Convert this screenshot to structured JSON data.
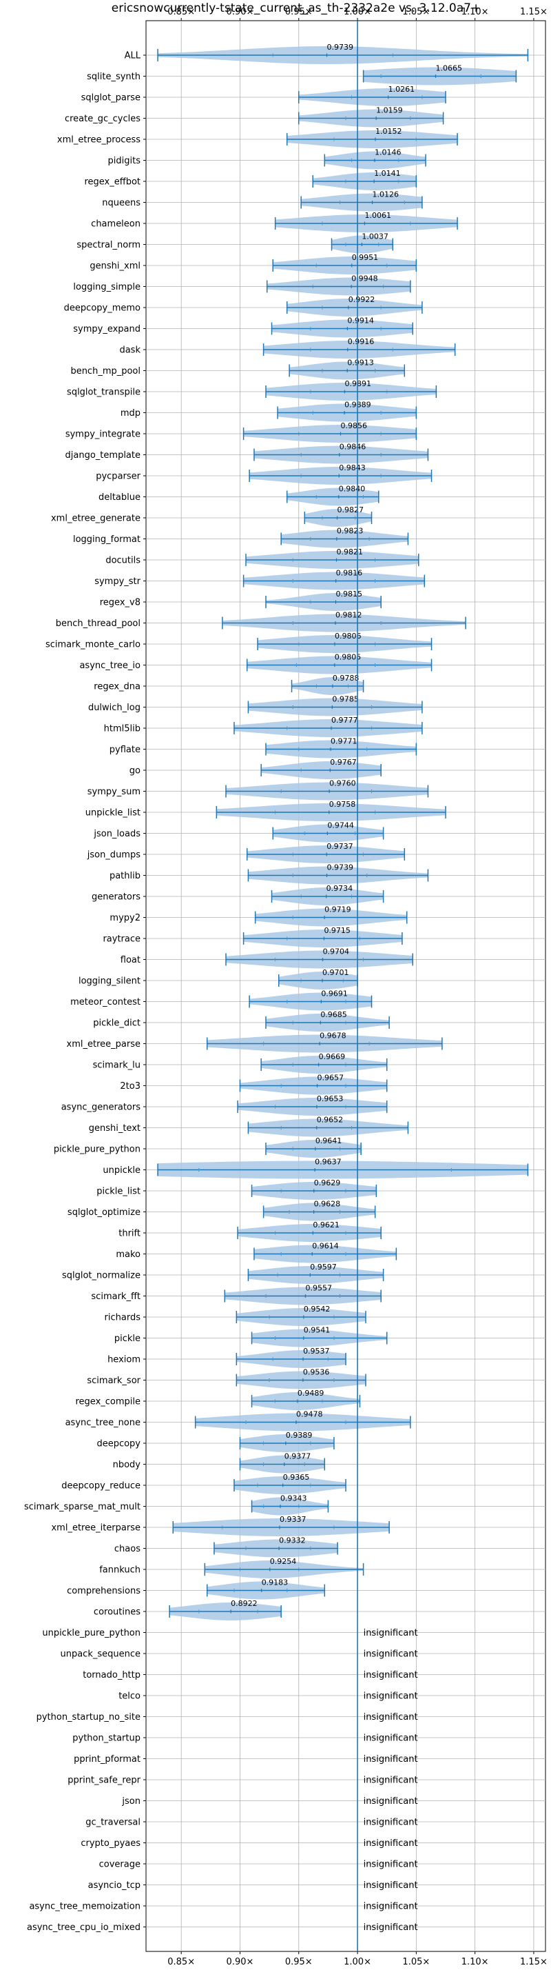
{
  "chart_data": {
    "type": "violin",
    "title": "ericsnowcurrently-tstate_current_as_th-2332a2e vs. 3.12.0a7+",
    "xlabel": "",
    "ylabel": "",
    "xlim": [
      0.82,
      1.16
    ],
    "x_ticks": [
      0.85,
      0.9,
      0.95,
      1.0,
      1.05,
      1.1,
      1.15
    ],
    "x_tick_labels": [
      "0.85×",
      "0.90×",
      "0.95×",
      "1.00×",
      "1.05×",
      "1.10×",
      "1.15×"
    ],
    "reference_line": 1.0,
    "grid": true,
    "colors": {
      "violin": "#a9c8e6",
      "line": "#1f77b4",
      "grid": "#b0b0b0",
      "reference": "#1f77b4"
    },
    "insignificant_label": "insignificant",
    "benchmarks": [
      {
        "name": "ALL",
        "median": 0.9739,
        "min": 0.83,
        "max": 1.145,
        "q1": 0.928,
        "q3": 1.03
      },
      {
        "name": "sqlite_synth",
        "median": 1.0665,
        "min": 1.005,
        "max": 1.135,
        "q1": 1.02,
        "q3": 1.105
      },
      {
        "name": "sqlglot_parse",
        "median": 1.0261,
        "min": 0.95,
        "max": 1.075,
        "q1": 0.995,
        "q3": 1.055
      },
      {
        "name": "create_gc_cycles",
        "median": 1.0159,
        "min": 0.95,
        "max": 1.073,
        "q1": 0.99,
        "q3": 1.045
      },
      {
        "name": "xml_etree_process",
        "median": 1.0152,
        "min": 0.94,
        "max": 1.085,
        "q1": 0.98,
        "q3": 1.05
      },
      {
        "name": "pidigits",
        "median": 1.0146,
        "min": 0.972,
        "max": 1.058,
        "q1": 0.995,
        "q3": 1.035
      },
      {
        "name": "regex_effbot",
        "median": 1.0141,
        "min": 0.962,
        "max": 1.05,
        "q1": 0.99,
        "q3": 1.035
      },
      {
        "name": "nqueens",
        "median": 1.0126,
        "min": 0.952,
        "max": 1.055,
        "q1": 0.985,
        "q3": 1.04
      },
      {
        "name": "chameleon",
        "median": 1.0061,
        "min": 0.93,
        "max": 1.085,
        "q1": 0.97,
        "q3": 1.045
      },
      {
        "name": "spectral_norm",
        "median": 1.0037,
        "min": 0.978,
        "max": 1.03,
        "q1": 0.99,
        "q3": 1.018
      },
      {
        "name": "genshi_xml",
        "median": 0.9951,
        "min": 0.928,
        "max": 1.05,
        "q1": 0.965,
        "q3": 1.025
      },
      {
        "name": "logging_simple",
        "median": 0.9948,
        "min": 0.923,
        "max": 1.045,
        "q1": 0.962,
        "q3": 1.022
      },
      {
        "name": "deepcopy_memo",
        "median": 0.9922,
        "min": 0.94,
        "max": 1.055,
        "q1": 0.97,
        "q3": 1.02
      },
      {
        "name": "sympy_expand",
        "median": 0.9914,
        "min": 0.927,
        "max": 1.047,
        "q1": 0.96,
        "q3": 1.02
      },
      {
        "name": "dask",
        "median": 0.9916,
        "min": 0.92,
        "max": 1.083,
        "q1": 0.96,
        "q3": 1.03
      },
      {
        "name": "bench_mp_pool",
        "median": 0.9913,
        "min": 0.942,
        "max": 1.04,
        "q1": 0.97,
        "q3": 1.015
      },
      {
        "name": "sqlglot_transpile",
        "median": 0.9891,
        "min": 0.922,
        "max": 1.067,
        "q1": 0.96,
        "q3": 1.025
      },
      {
        "name": "mdp",
        "median": 0.9889,
        "min": 0.932,
        "max": 1.05,
        "q1": 0.962,
        "q3": 1.02
      },
      {
        "name": "sympy_integrate",
        "median": 0.9856,
        "min": 0.903,
        "max": 1.05,
        "q1": 0.95,
        "q3": 1.02
      },
      {
        "name": "django_template",
        "median": 0.9846,
        "min": 0.912,
        "max": 1.06,
        "q1": 0.952,
        "q3": 1.02
      },
      {
        "name": "pycparser",
        "median": 0.9843,
        "min": 0.908,
        "max": 1.063,
        "q1": 0.952,
        "q3": 1.02
      },
      {
        "name": "deltablue",
        "median": 0.984,
        "min": 0.94,
        "max": 1.018,
        "q1": 0.965,
        "q3": 1.005
      },
      {
        "name": "xml_etree_generate",
        "median": 0.9827,
        "min": 0.955,
        "max": 1.012,
        "q1": 0.97,
        "q3": 0.998
      },
      {
        "name": "logging_format",
        "median": 0.9823,
        "min": 0.935,
        "max": 1.043,
        "q1": 0.96,
        "q3": 1.01
      },
      {
        "name": "docutils",
        "median": 0.9821,
        "min": 0.905,
        "max": 1.052,
        "q1": 0.945,
        "q3": 1.015
      },
      {
        "name": "sympy_str",
        "median": 0.9816,
        "min": 0.903,
        "max": 1.057,
        "q1": 0.945,
        "q3": 1.015
      },
      {
        "name": "regex_v8",
        "median": 0.9815,
        "min": 0.922,
        "max": 1.02,
        "q1": 0.96,
        "q3": 1.0
      },
      {
        "name": "bench_thread_pool",
        "median": 0.9812,
        "min": 0.885,
        "max": 1.092,
        "q1": 0.945,
        "q3": 1.02
      },
      {
        "name": "scimark_monte_carlo",
        "median": 0.9806,
        "min": 0.915,
        "max": 1.063,
        "q1": 0.95,
        "q3": 1.015
      },
      {
        "name": "async_tree_io",
        "median": 0.9805,
        "min": 0.906,
        "max": 1.063,
        "q1": 0.948,
        "q3": 1.015
      },
      {
        "name": "regex_dna",
        "median": 0.9788,
        "min": 0.944,
        "max": 1.005,
        "q1": 0.965,
        "q3": 0.992
      },
      {
        "name": "dulwich_log",
        "median": 0.9785,
        "min": 0.907,
        "max": 1.055,
        "q1": 0.945,
        "q3": 1.012
      },
      {
        "name": "html5lib",
        "median": 0.9777,
        "min": 0.895,
        "max": 1.055,
        "q1": 0.94,
        "q3": 1.012
      },
      {
        "name": "pyflate",
        "median": 0.9771,
        "min": 0.922,
        "max": 1.05,
        "q1": 0.95,
        "q3": 1.008
      },
      {
        "name": "go",
        "median": 0.9767,
        "min": 0.918,
        "max": 1.02,
        "q1": 0.952,
        "q3": 1.0
      },
      {
        "name": "sympy_sum",
        "median": 0.976,
        "min": 0.888,
        "max": 1.06,
        "q1": 0.935,
        "q3": 1.012
      },
      {
        "name": "unpickle_list",
        "median": 0.9758,
        "min": 0.88,
        "max": 1.075,
        "q1": 0.93,
        "q3": 1.015
      },
      {
        "name": "json_loads",
        "median": 0.9744,
        "min": 0.928,
        "max": 1.022,
        "q1": 0.955,
        "q3": 0.998
      },
      {
        "name": "json_dumps",
        "median": 0.9737,
        "min": 0.906,
        "max": 1.04,
        "q1": 0.945,
        "q3": 1.005
      },
      {
        "name": "pathlib",
        "median": 0.9739,
        "min": 0.907,
        "max": 1.06,
        "q1": 0.945,
        "q3": 1.008
      },
      {
        "name": "generators",
        "median": 0.9734,
        "min": 0.927,
        "max": 1.022,
        "q1": 0.952,
        "q3": 0.995
      },
      {
        "name": "mypy2",
        "median": 0.9719,
        "min": 0.913,
        "max": 1.042,
        "q1": 0.945,
        "q3": 1.0
      },
      {
        "name": "raytrace",
        "median": 0.9715,
        "min": 0.903,
        "max": 1.038,
        "q1": 0.94,
        "q3": 1.002
      },
      {
        "name": "float",
        "median": 0.9704,
        "min": 0.888,
        "max": 1.047,
        "q1": 0.93,
        "q3": 1.005
      },
      {
        "name": "logging_silent",
        "median": 0.9701,
        "min": 0.933,
        "max": 1.0,
        "q1": 0.952,
        "q3": 0.988
      },
      {
        "name": "meteor_contest",
        "median": 0.9691,
        "min": 0.908,
        "max": 1.012,
        "q1": 0.94,
        "q3": 0.99
      },
      {
        "name": "pickle_dict",
        "median": 0.9685,
        "min": 0.922,
        "max": 1.027,
        "q1": 0.945,
        "q3": 0.99
      },
      {
        "name": "xml_etree_parse",
        "median": 0.9678,
        "min": 0.872,
        "max": 1.072,
        "q1": 0.92,
        "q3": 1.01
      },
      {
        "name": "scimark_lu",
        "median": 0.9669,
        "min": 0.918,
        "max": 1.025,
        "q1": 0.945,
        "q3": 0.99
      },
      {
        "name": "2to3",
        "median": 0.9657,
        "min": 0.9,
        "max": 1.025,
        "q1": 0.935,
        "q3": 0.99
      },
      {
        "name": "async_generators",
        "median": 0.9653,
        "min": 0.898,
        "max": 1.025,
        "q1": 0.93,
        "q3": 0.99
      },
      {
        "name": "genshi_text",
        "median": 0.9652,
        "min": 0.907,
        "max": 1.043,
        "q1": 0.935,
        "q3": 0.995
      },
      {
        "name": "pickle_pure_python",
        "median": 0.9641,
        "min": 0.922,
        "max": 1.003,
        "q1": 0.945,
        "q3": 0.985
      },
      {
        "name": "unpickle",
        "median": 0.9637,
        "min": 0.83,
        "max": 1.145,
        "q1": 0.865,
        "q3": 1.08
      },
      {
        "name": "pickle_list",
        "median": 0.9629,
        "min": 0.91,
        "max": 1.016,
        "q1": 0.935,
        "q3": 0.99
      },
      {
        "name": "sqlglot_optimize",
        "median": 0.9628,
        "min": 0.92,
        "max": 1.015,
        "q1": 0.942,
        "q3": 0.985
      },
      {
        "name": "thrift",
        "median": 0.9621,
        "min": 0.898,
        "max": 1.02,
        "q1": 0.93,
        "q3": 0.99
      },
      {
        "name": "mako",
        "median": 0.9614,
        "min": 0.912,
        "max": 1.033,
        "q1": 0.935,
        "q3": 0.99
      },
      {
        "name": "sqlglot_normalize",
        "median": 0.9597,
        "min": 0.907,
        "max": 1.022,
        "q1": 0.932,
        "q3": 0.985
      },
      {
        "name": "scimark_fft",
        "median": 0.9557,
        "min": 0.887,
        "max": 1.02,
        "q1": 0.922,
        "q3": 0.985
      },
      {
        "name": "richards",
        "median": 0.9542,
        "min": 0.897,
        "max": 1.007,
        "q1": 0.925,
        "q3": 0.98
      },
      {
        "name": "pickle",
        "median": 0.9541,
        "min": 0.91,
        "max": 1.025,
        "q1": 0.93,
        "q3": 0.98
      },
      {
        "name": "hexiom",
        "median": 0.9537,
        "min": 0.897,
        "max": 0.99,
        "q1": 0.928,
        "q3": 0.975
      },
      {
        "name": "scimark_sor",
        "median": 0.9536,
        "min": 0.897,
        "max": 1.007,
        "q1": 0.925,
        "q3": 0.98
      },
      {
        "name": "regex_compile",
        "median": 0.9489,
        "min": 0.91,
        "max": 1.002,
        "q1": 0.93,
        "q3": 0.97
      },
      {
        "name": "async_tree_none",
        "median": 0.9478,
        "min": 0.862,
        "max": 1.045,
        "q1": 0.905,
        "q3": 0.99
      },
      {
        "name": "deepcopy",
        "median": 0.9389,
        "min": 0.9,
        "max": 0.98,
        "q1": 0.92,
        "q3": 0.96
      },
      {
        "name": "nbody",
        "median": 0.9377,
        "min": 0.9,
        "max": 0.972,
        "q1": 0.92,
        "q3": 0.955
      },
      {
        "name": "deepcopy_reduce",
        "median": 0.9365,
        "min": 0.895,
        "max": 0.99,
        "q1": 0.915,
        "q3": 0.96
      },
      {
        "name": "scimark_sparse_mat_mult",
        "median": 0.9343,
        "min": 0.91,
        "max": 0.975,
        "q1": 0.92,
        "q3": 0.95
      },
      {
        "name": "xml_etree_iterparse",
        "median": 0.9337,
        "min": 0.843,
        "max": 1.027,
        "q1": 0.885,
        "q3": 0.98
      },
      {
        "name": "chaos",
        "median": 0.9332,
        "min": 0.878,
        "max": 0.983,
        "q1": 0.905,
        "q3": 0.96
      },
      {
        "name": "fannkuch",
        "median": 0.9254,
        "min": 0.87,
        "max": 1.005,
        "q1": 0.9,
        "q3": 0.95
      },
      {
        "name": "comprehensions",
        "median": 0.9183,
        "min": 0.872,
        "max": 0.972,
        "q1": 0.895,
        "q3": 0.94
      },
      {
        "name": "coroutines",
        "median": 0.8922,
        "min": 0.84,
        "max": 0.935,
        "q1": 0.865,
        "q3": 0.915
      },
      {
        "name": "unpickle_pure_python",
        "insignificant": true
      },
      {
        "name": "unpack_sequence",
        "insignificant": true
      },
      {
        "name": "tornado_http",
        "insignificant": true
      },
      {
        "name": "telco",
        "insignificant": true
      },
      {
        "name": "python_startup_no_site",
        "insignificant": true
      },
      {
        "name": "python_startup",
        "insignificant": true
      },
      {
        "name": "pprint_pformat",
        "insignificant": true
      },
      {
        "name": "pprint_safe_repr",
        "insignificant": true
      },
      {
        "name": "json",
        "insignificant": true
      },
      {
        "name": "gc_traversal",
        "insignificant": true
      },
      {
        "name": "crypto_pyaes",
        "insignificant": true
      },
      {
        "name": "coverage",
        "insignificant": true
      },
      {
        "name": "asyncio_tcp",
        "insignificant": true
      },
      {
        "name": "async_tree_memoization",
        "insignificant": true
      },
      {
        "name": "async_tree_cpu_io_mixed",
        "insignificant": true
      }
    ]
  }
}
